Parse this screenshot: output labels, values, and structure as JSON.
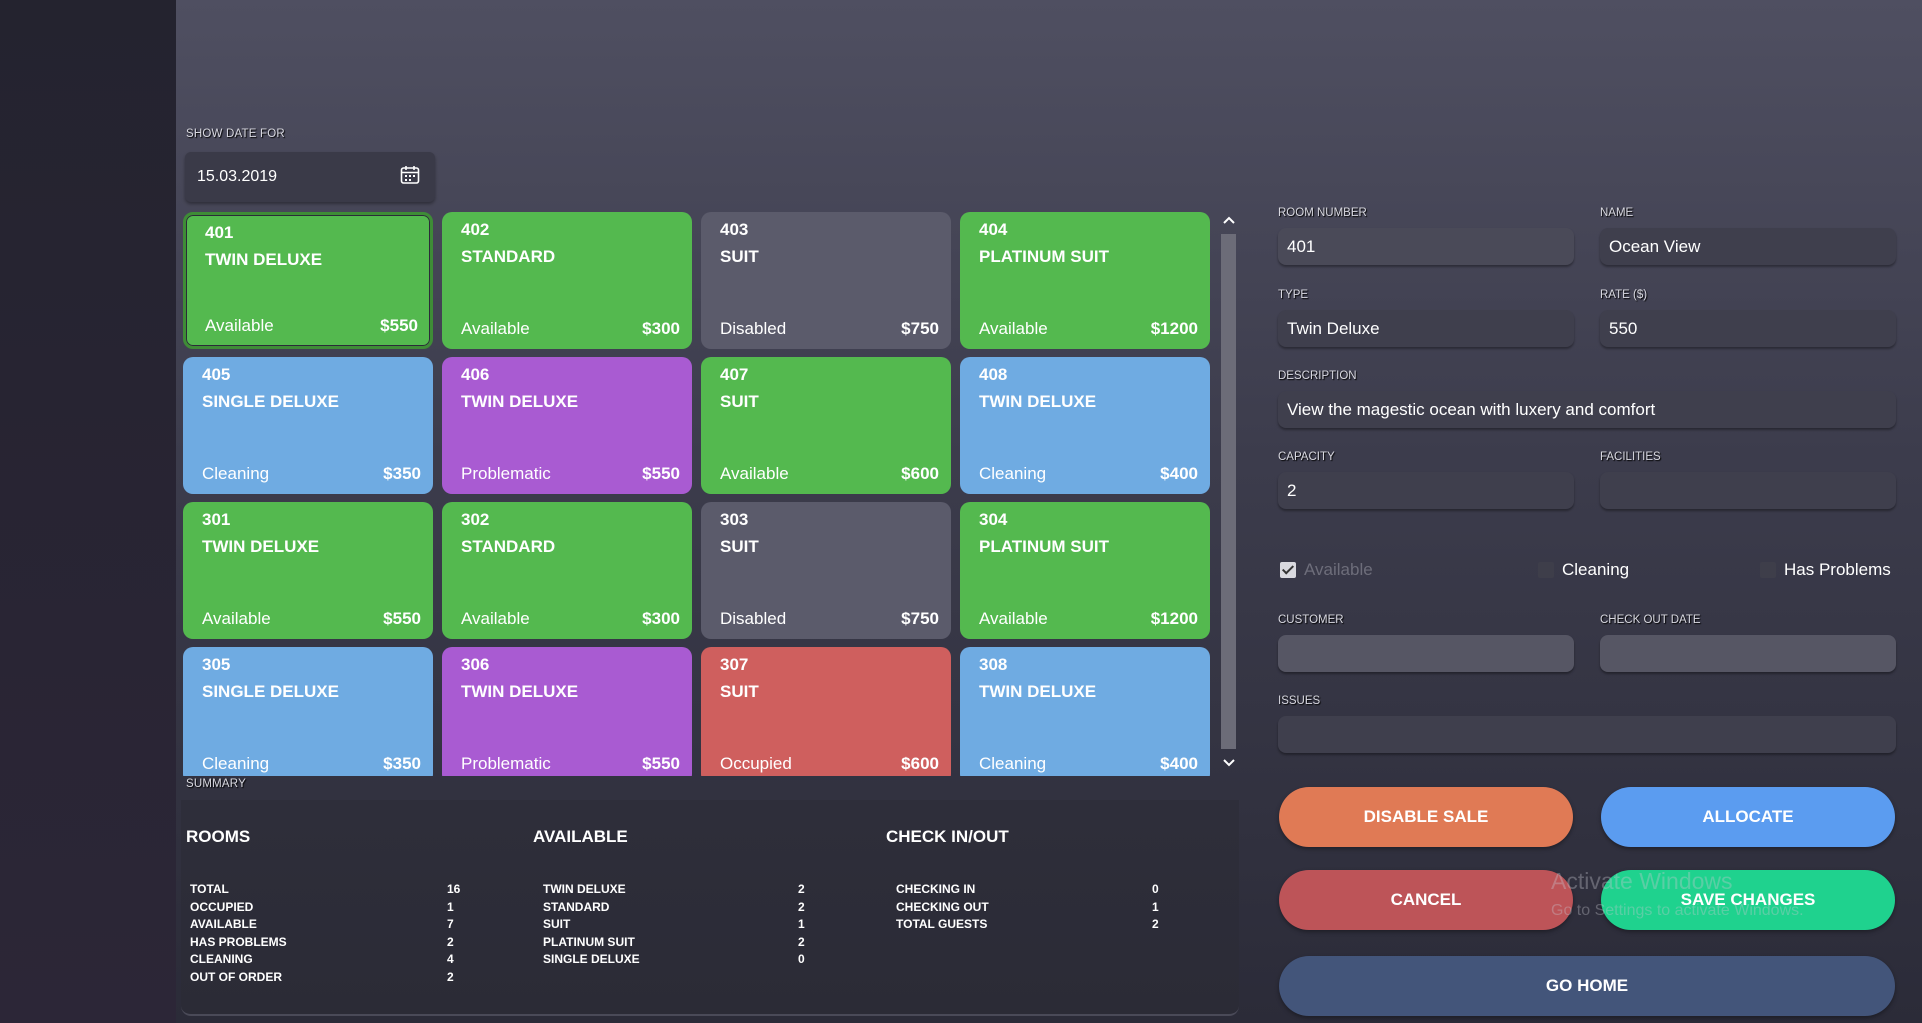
{
  "date_filter": {
    "label": "SHOW DATE FOR",
    "value": "15.03.2019",
    "icon": "calendar-icon"
  },
  "rooms": [
    {
      "number": "401",
      "type": "TWIN DELUXE",
      "status": "Available",
      "price": "$550",
      "color": "#54b94f",
      "selected": true
    },
    {
      "number": "402",
      "type": "STANDARD",
      "status": "Available",
      "price": "$300",
      "color": "#54b94f"
    },
    {
      "number": "403",
      "type": "SUIT",
      "status": "Disabled",
      "price": "$750",
      "color": "#5b5b6b"
    },
    {
      "number": "404",
      "type": "PLATINUM SUIT",
      "status": "Available",
      "price": "$1200",
      "color": "#54b94f"
    },
    {
      "number": "405",
      "type": "SINGLE DELUXE",
      "status": "Cleaning",
      "price": "$350",
      "color": "#6fabe2"
    },
    {
      "number": "406",
      "type": "TWIN DELUXE",
      "status": "Problematic",
      "price": "$550",
      "color": "#a95bd2"
    },
    {
      "number": "407",
      "type": "SUIT",
      "status": "Available",
      "price": "$600",
      "color": "#54b94f"
    },
    {
      "number": "408",
      "type": "TWIN DELUXE",
      "status": "Cleaning",
      "price": "$400",
      "color": "#6fabe2"
    },
    {
      "number": "301",
      "type": "TWIN DELUXE",
      "status": "Available",
      "price": "$550",
      "color": "#54b94f"
    },
    {
      "number": "302",
      "type": "STANDARD",
      "status": "Available",
      "price": "$300",
      "color": "#54b94f"
    },
    {
      "number": "303",
      "type": "SUIT",
      "status": "Disabled",
      "price": "$750",
      "color": "#5b5b6b"
    },
    {
      "number": "304",
      "type": "PLATINUM SUIT",
      "status": "Available",
      "price": "$1200",
      "color": "#54b94f"
    },
    {
      "number": "305",
      "type": "SINGLE DELUXE",
      "status": "Cleaning",
      "price": "$350",
      "color": "#6fabe2"
    },
    {
      "number": "306",
      "type": "TWIN DELUXE",
      "status": "Problematic",
      "price": "$550",
      "color": "#a95bd2"
    },
    {
      "number": "307",
      "type": "SUIT",
      "status": "Occupied",
      "price": "$600",
      "color": "#cf5f5e"
    },
    {
      "number": "308",
      "type": "TWIN DELUXE",
      "status": "Cleaning",
      "price": "$400",
      "color": "#6fabe2"
    }
  ],
  "summary": {
    "label": "SUMMARY",
    "rooms": {
      "title": "ROOMS",
      "rows": [
        {
          "label": "TOTAL",
          "value": "16"
        },
        {
          "label": "OCCUPIED",
          "value": "1"
        },
        {
          "label": "AVAILABLE",
          "value": "7"
        },
        {
          "label": "HAS PROBLEMS",
          "value": "2"
        },
        {
          "label": "CLEANING",
          "value": "4"
        },
        {
          "label": "OUT OF ORDER",
          "value": "2"
        }
      ]
    },
    "available": {
      "title": "AVAILABLE",
      "rows": [
        {
          "label": "TWIN DELUXE",
          "value": "2"
        },
        {
          "label": "STANDARD",
          "value": "2"
        },
        {
          "label": "SUIT",
          "value": "1"
        },
        {
          "label": "PLATINUM SUIT",
          "value": "2"
        },
        {
          "label": "SINGLE DELUXE",
          "value": "0"
        }
      ]
    },
    "checkinout": {
      "title": "CHECK IN/OUT",
      "rows": [
        {
          "label": "CHECKING IN",
          "value": "0"
        },
        {
          "label": "CHECKING OUT",
          "value": "1"
        },
        {
          "label": "TOTAL GUESTS",
          "value": "2"
        }
      ]
    }
  },
  "form": {
    "room_number": {
      "label": "ROOM NUMBER",
      "value": "401"
    },
    "name": {
      "label": "NAME",
      "value": "Ocean View"
    },
    "type": {
      "label": "TYPE",
      "value": "Twin Deluxe"
    },
    "rate": {
      "label": "RATE ($)",
      "value": "550"
    },
    "description": {
      "label": "DESCRIPTION",
      "value": "View the magestic ocean with luxery and comfort"
    },
    "capacity": {
      "label": "CAPACITY",
      "value": "2"
    },
    "facilities": {
      "label": "FACILITIES",
      "value": ""
    },
    "checkboxes": {
      "available": {
        "label": "Available",
        "checked": true
      },
      "cleaning": {
        "label": "Cleaning",
        "checked": false
      },
      "has_problems": {
        "label": "Has Problems",
        "checked": false
      }
    },
    "customer": {
      "label": "CUSTOMER",
      "value": ""
    },
    "checkout_date": {
      "label": "CHECK OUT DATE",
      "value": ""
    },
    "issues": {
      "label": "ISSUES",
      "value": ""
    }
  },
  "buttons": {
    "disable_sale": {
      "label": "DISABLE SALE",
      "color": "#e07a55"
    },
    "allocate": {
      "label": "ALLOCATE",
      "color": "#5b9cf0"
    },
    "cancel": {
      "label": "CANCEL",
      "color": "#bd5458"
    },
    "save_changes": {
      "label": "SAVE CHANGES",
      "color": "#1fd28e"
    },
    "go_home": {
      "label": "GO HOME",
      "color": "#43557a"
    }
  },
  "watermark": {
    "line1": "Activate Windows",
    "line2": "Go to Settings to activate Windows."
  }
}
